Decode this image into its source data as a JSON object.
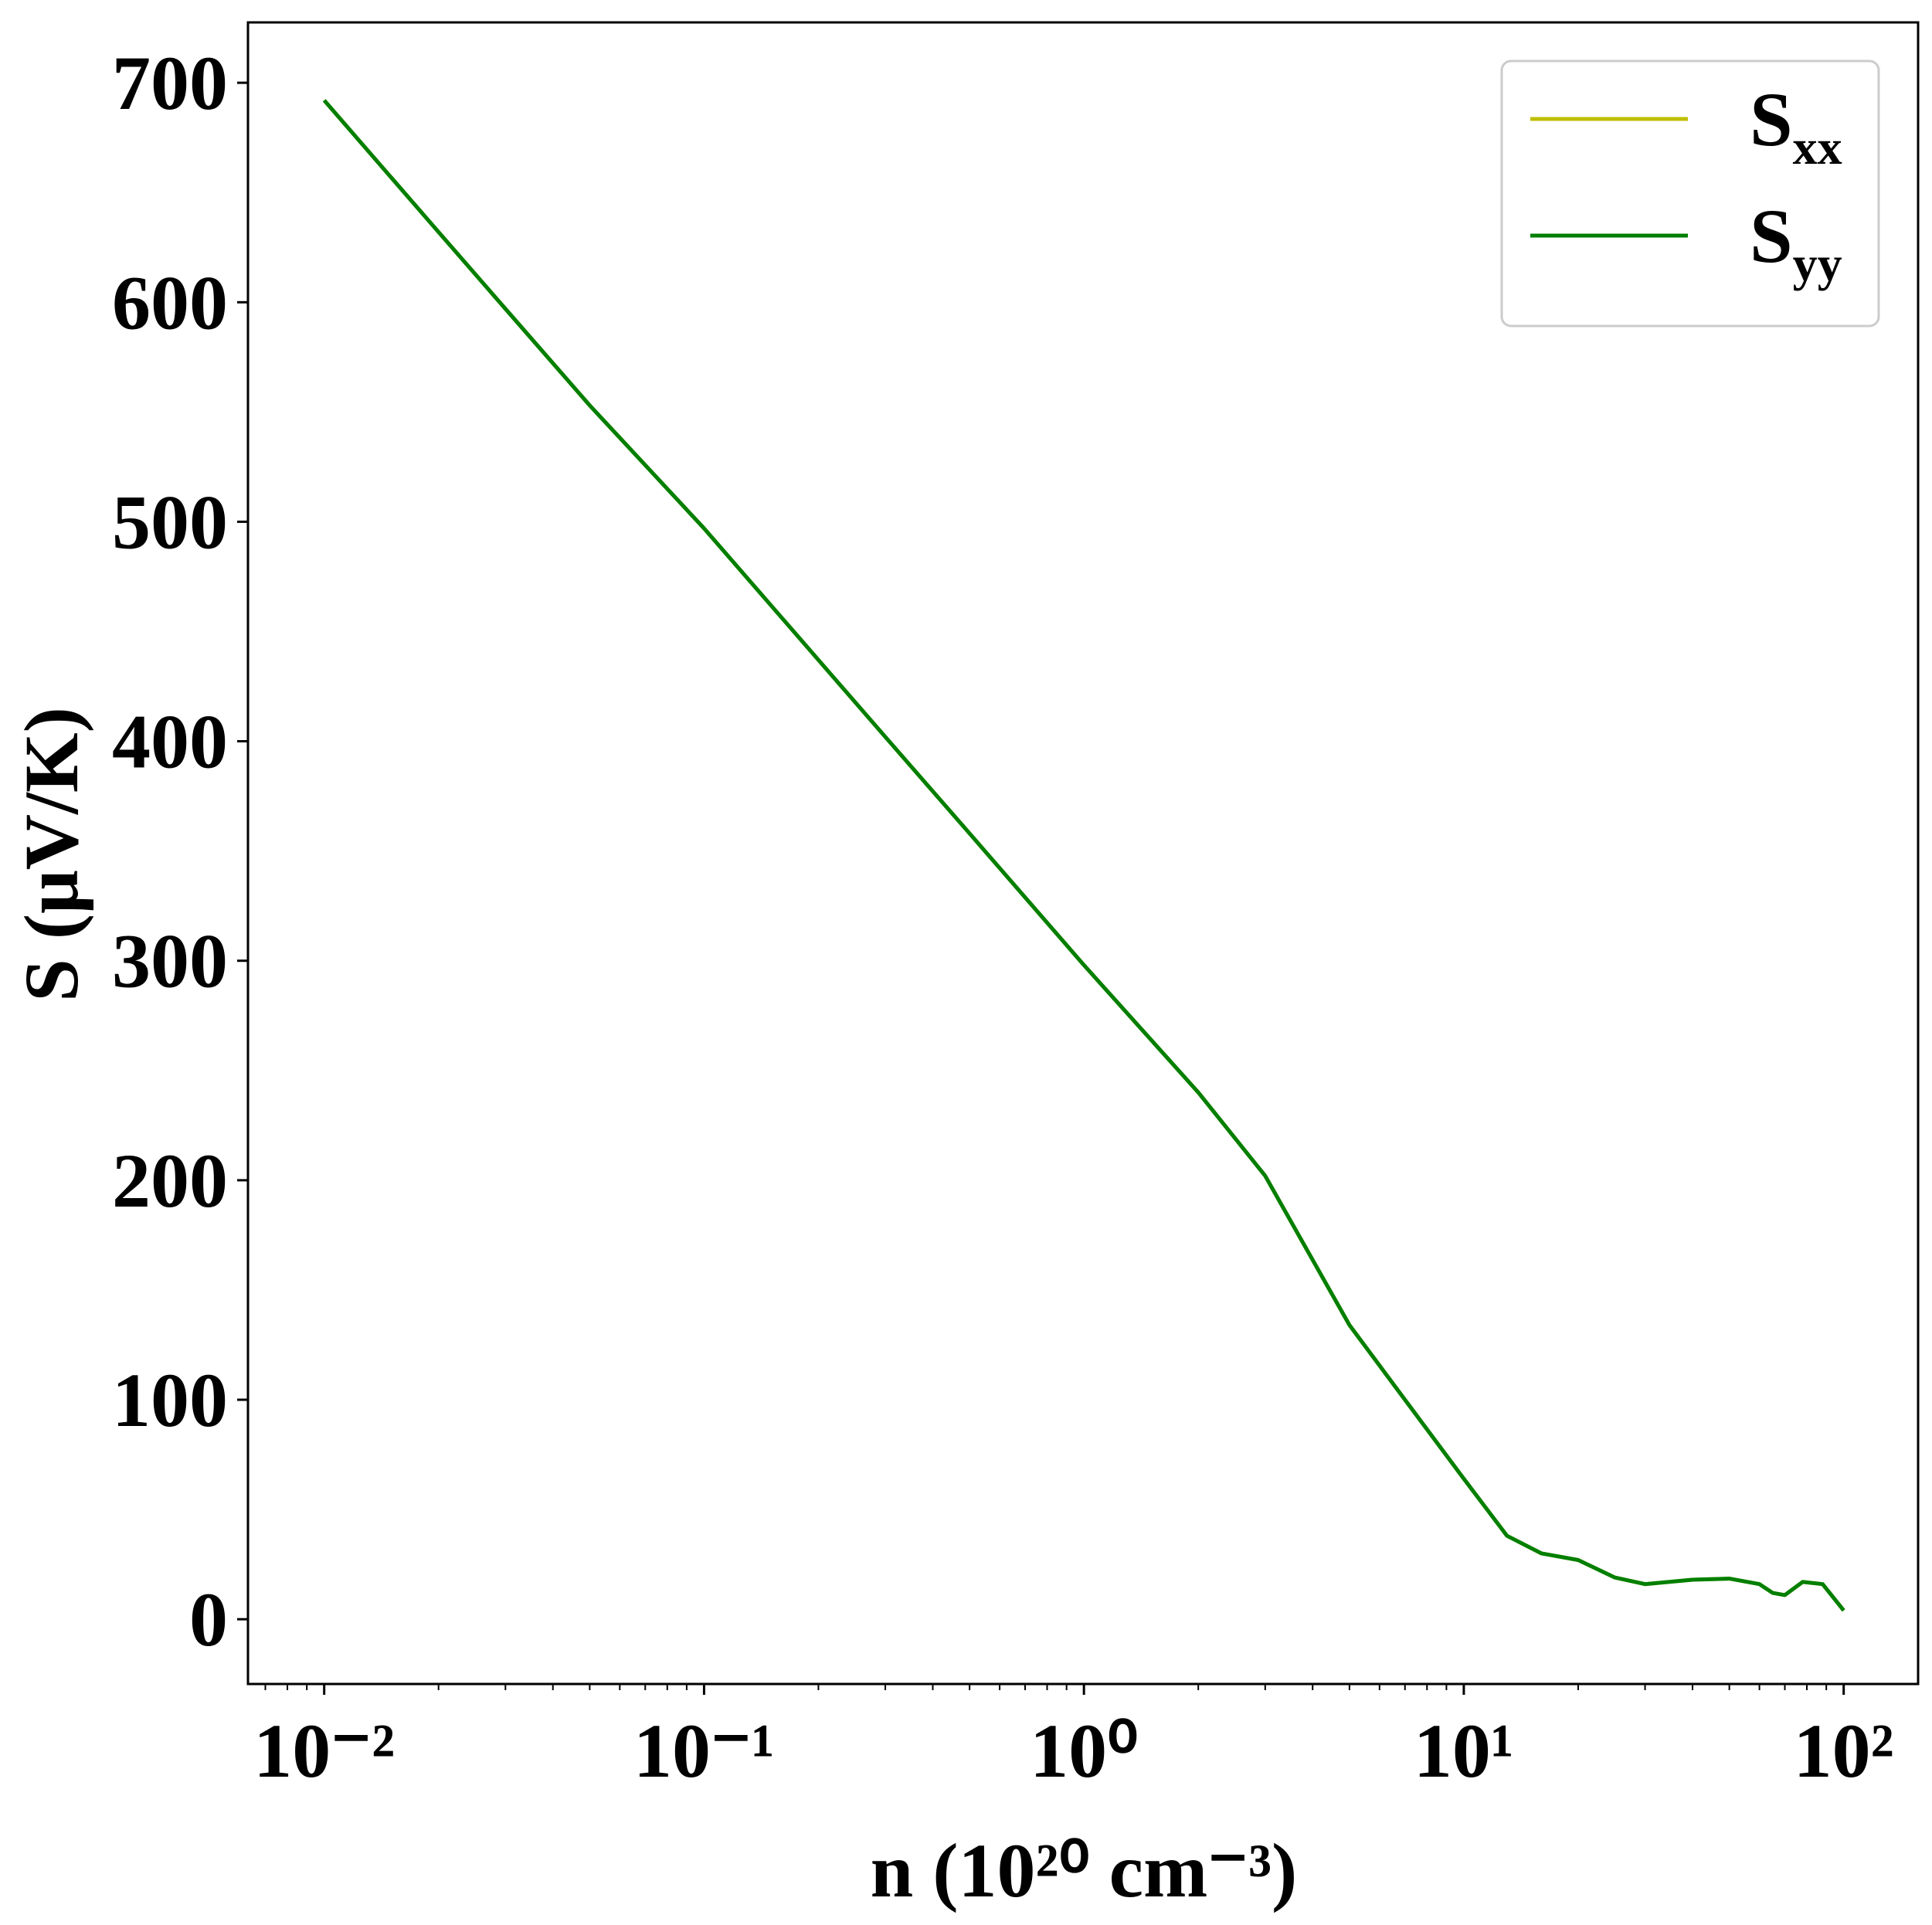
{
  "chart_data": {
    "type": "line",
    "xlabel": "n (10²⁰ cm⁻³)",
    "ylabel": "S (μV/K)",
    "xscale": "log",
    "x": [
      0.01,
      0.02,
      0.03,
      0.05,
      0.1,
      0.2,
      0.3,
      0.5,
      1,
      2,
      3,
      5,
      7,
      10,
      13,
      16,
      20,
      25,
      30,
      40,
      50,
      60,
      65,
      70,
      78,
      88,
      100
    ],
    "series": [
      {
        "name": "Sxx",
        "color": "#bfbf00",
        "values": [
          692,
          632,
          597,
          553,
          497,
          437,
          402,
          358,
          298,
          240,
          202,
          134,
          100,
          64,
          38,
          30,
          27,
          19,
          16,
          18,
          18.5,
          16,
          12,
          11,
          17,
          16,
          4
        ]
      },
      {
        "name": "Syy",
        "color": "#007f00",
        "values": [
          692,
          632,
          597,
          553,
          497,
          437,
          402,
          358,
          298,
          240,
          202,
          134,
          100,
          64,
          38,
          30,
          27,
          19,
          16,
          18,
          18.5,
          16,
          12,
          11,
          17,
          16,
          4
        ]
      }
    ],
    "xlim": [
      0.0063,
      157
    ],
    "ylim": [
      -29.5,
      727.5
    ],
    "xticks": [
      {
        "value": 0.01,
        "label": "10⁻²"
      },
      {
        "value": 0.1,
        "label": "10⁻¹"
      },
      {
        "value": 1,
        "label": "10⁰"
      },
      {
        "value": 10,
        "label": "10¹"
      },
      {
        "value": 100,
        "label": "10²"
      }
    ],
    "xminorticks": [
      0.007,
      0.008,
      0.009,
      0.02,
      0.03,
      0.04,
      0.05,
      0.06,
      0.07,
      0.08,
      0.09,
      0.2,
      0.3,
      0.4,
      0.5,
      0.6,
      0.7,
      0.8,
      0.9,
      2,
      3,
      4,
      5,
      6,
      7,
      8,
      9,
      20,
      30,
      40,
      50,
      60,
      70,
      80,
      90
    ],
    "yticks": [
      0,
      100,
      200,
      300,
      400,
      500,
      600,
      700
    ],
    "legend": "upper right"
  }
}
